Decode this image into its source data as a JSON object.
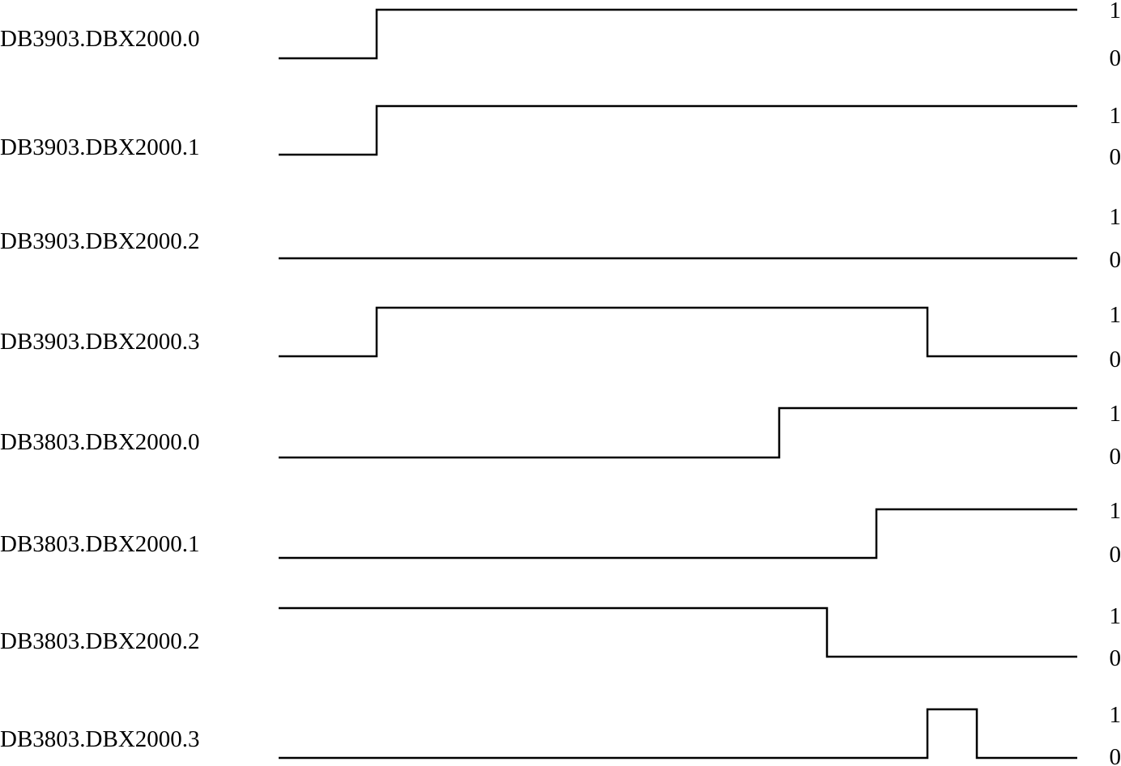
{
  "diagram": {
    "type": "timing-diagram",
    "line_color": "#000000",
    "text_color": "#000000",
    "background": "#ffffff",
    "level_high_label": "1",
    "level_low_label": "0",
    "signals": [
      {
        "name": "DB3903.DBX2000.0",
        "initial": 0,
        "transitions": [
          1
        ]
      },
      {
        "name": "DB3903.DBX2000.1",
        "initial": 0,
        "transitions": [
          1
        ]
      },
      {
        "name": "DB3903.DBX2000.2",
        "initial": 0,
        "transitions": []
      },
      {
        "name": "DB3903.DBX2000.3",
        "initial": 0,
        "transitions": [
          1,
          4
        ]
      },
      {
        "name": "DB3803.DBX2000.0",
        "initial": 0,
        "transitions": [
          3
        ]
      },
      {
        "name": "DB3803.DBX2000.1",
        "initial": 0,
        "transitions": [
          5
        ]
      },
      {
        "name": "DB3803.DBX2000.2",
        "initial": 1,
        "transitions": [
          2
        ]
      },
      {
        "name": "DB3803.DBX2000.3",
        "initial": 0,
        "transitions": [
          4,
          6
        ]
      }
    ]
  }
}
